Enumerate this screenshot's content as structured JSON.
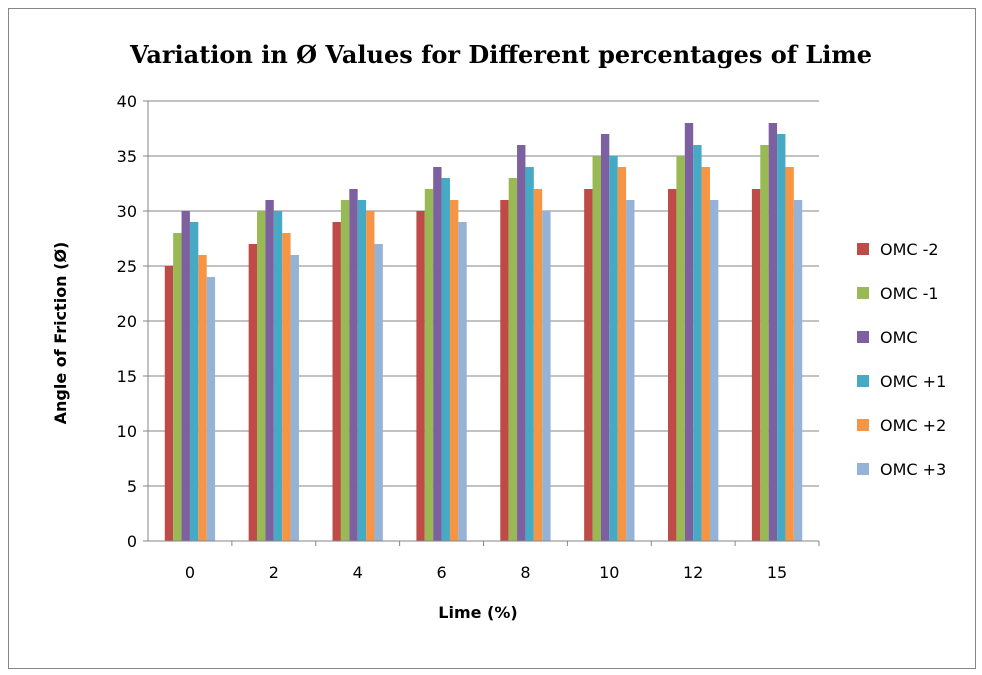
{
  "chart_data": {
    "type": "bar",
    "title": "Variation in Ø Values for Different percentages of Lime",
    "xlabel": "Lime (%)",
    "ylabel": "Angle of Friction (Ø)",
    "categories": [
      "0",
      "2",
      "4",
      "6",
      "8",
      "10",
      "12",
      "15"
    ],
    "ylim": [
      0,
      40
    ],
    "yticks": [
      0,
      5,
      10,
      15,
      20,
      25,
      30,
      35,
      40
    ],
    "grid": true,
    "legend_position": "right",
    "series": [
      {
        "name": "OMC -2",
        "color": "#BE4B48",
        "values": [
          25,
          27,
          29,
          30,
          31,
          32,
          32,
          32
        ]
      },
      {
        "name": "OMC -1",
        "color": "#98B954",
        "values": [
          28,
          30,
          31,
          32,
          33,
          35,
          35,
          36
        ]
      },
      {
        "name": "OMC",
        "color": "#7D60A0",
        "values": [
          30,
          31,
          32,
          34,
          36,
          37,
          38,
          38
        ]
      },
      {
        "name": "OMC +1",
        "color": "#46AAC5",
        "values": [
          29,
          30,
          31,
          33,
          34,
          35,
          36,
          37
        ]
      },
      {
        "name": "OMC +2",
        "color": "#F69544",
        "values": [
          26,
          28,
          30,
          31,
          32,
          34,
          34,
          34
        ]
      },
      {
        "name": "OMC +3",
        "color": "#95B3D7",
        "values": [
          24,
          26,
          27,
          29,
          30,
          31,
          31,
          31
        ]
      }
    ]
  }
}
